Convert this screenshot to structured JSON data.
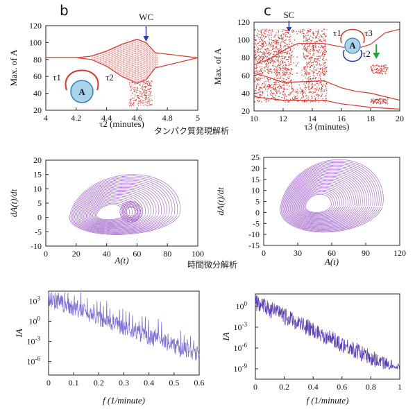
{
  "panel_labels": {
    "b": "b",
    "c": "c"
  },
  "captions": {
    "row1": "タンパク質発現解析",
    "row2": "時間微分解析"
  },
  "chart_data": [
    {
      "id": "b_bifurcation",
      "type": "scatter",
      "xlabel": "τ2 (minutes)",
      "ylabel": "Max. of A",
      "xlim": [
        4,
        5
      ],
      "ylim": [
        20,
        120
      ],
      "xticks": [
        4,
        4.2,
        4.4,
        4.6,
        4.8,
        5
      ],
      "yticks": [
        20,
        40,
        60,
        80,
        100,
        120
      ],
      "annotation": "WC",
      "annotation_x": 4.66,
      "inset_node_label": "A",
      "inset_tau_left": "τ1",
      "inset_tau_right": "τ2",
      "color": "#d9362b",
      "upper_branch": {
        "x": [
          4.0,
          4.2,
          4.3,
          4.4,
          4.5,
          4.6,
          4.66,
          4.72,
          5.0
        ],
        "y": [
          82,
          82,
          84,
          90,
          98,
          104,
          100,
          88,
          82
        ]
      },
      "lower_branch": {
        "x": [
          4.0,
          4.2,
          4.3,
          4.4,
          4.5,
          4.6,
          4.66,
          4.72,
          5.0
        ],
        "y": [
          82,
          82,
          80,
          72,
          60,
          52,
          56,
          70,
          82
        ]
      }
    },
    {
      "id": "c_bifurcation",
      "type": "scatter",
      "xlabel": "τ3 (minutes)",
      "ylabel": "Max. of A",
      "xlim": [
        10,
        20
      ],
      "ylim": [
        20,
        120
      ],
      "xticks": [
        10,
        12,
        14,
        16,
        18,
        20
      ],
      "yticks": [
        20,
        40,
        60,
        80,
        100,
        120
      ],
      "annotation": "SC",
      "annotation_x": 12.4,
      "inset_node_label": "A",
      "inset_tau_left": "τ1",
      "inset_tau_right": "τ3",
      "inset_tau_bottom": "τ2",
      "color": "#d9362b",
      "accent": "#22a03a"
    },
    {
      "id": "b_phase",
      "type": "line",
      "xlabel": "A(t)",
      "ylabel": "dA(t)/dt",
      "xlim": [
        0,
        100
      ],
      "ylim": [
        -10,
        20
      ],
      "xticks": [
        0,
        20,
        40,
        60,
        80,
        100
      ],
      "yticks": [
        -10,
        -5,
        0,
        5,
        10,
        15,
        20
      ],
      "color": "#9a5bc4"
    },
    {
      "id": "c_phase",
      "type": "line",
      "xlabel": "A(t)",
      "ylabel": "dA(t)/dt",
      "xlim": [
        0,
        120
      ],
      "ylim": [
        -15,
        25
      ],
      "xticks": [
        0,
        30,
        60,
        90,
        120
      ],
      "yticks": [
        -15,
        -10,
        -5,
        0,
        5,
        10,
        15,
        20,
        25
      ],
      "color": "#9a5bc4"
    },
    {
      "id": "b_spectrum",
      "type": "line",
      "xlabel": "f (1/minute)",
      "ylabel": "I_A",
      "xlim": [
        0,
        0.6
      ],
      "yscale": "log",
      "xticks": [
        0,
        0.1,
        0.2,
        0.3,
        0.4,
        0.5,
        0.6
      ],
      "yticks": [
        "10^3",
        "10^0",
        "10^-3",
        "10^-6"
      ],
      "color": "#7b6fd0"
    },
    {
      "id": "c_spectrum",
      "type": "line",
      "xlabel": "f (1/minute)",
      "ylabel": "I_A",
      "xlim": [
        0,
        1
      ],
      "yscale": "log",
      "xticks": [
        0,
        0.2,
        0.4,
        0.6,
        0.8,
        1
      ],
      "yticks": [
        "10^0",
        "10^-3",
        "10^-6",
        "10^-9"
      ],
      "color": "#5a3fb0"
    }
  ]
}
